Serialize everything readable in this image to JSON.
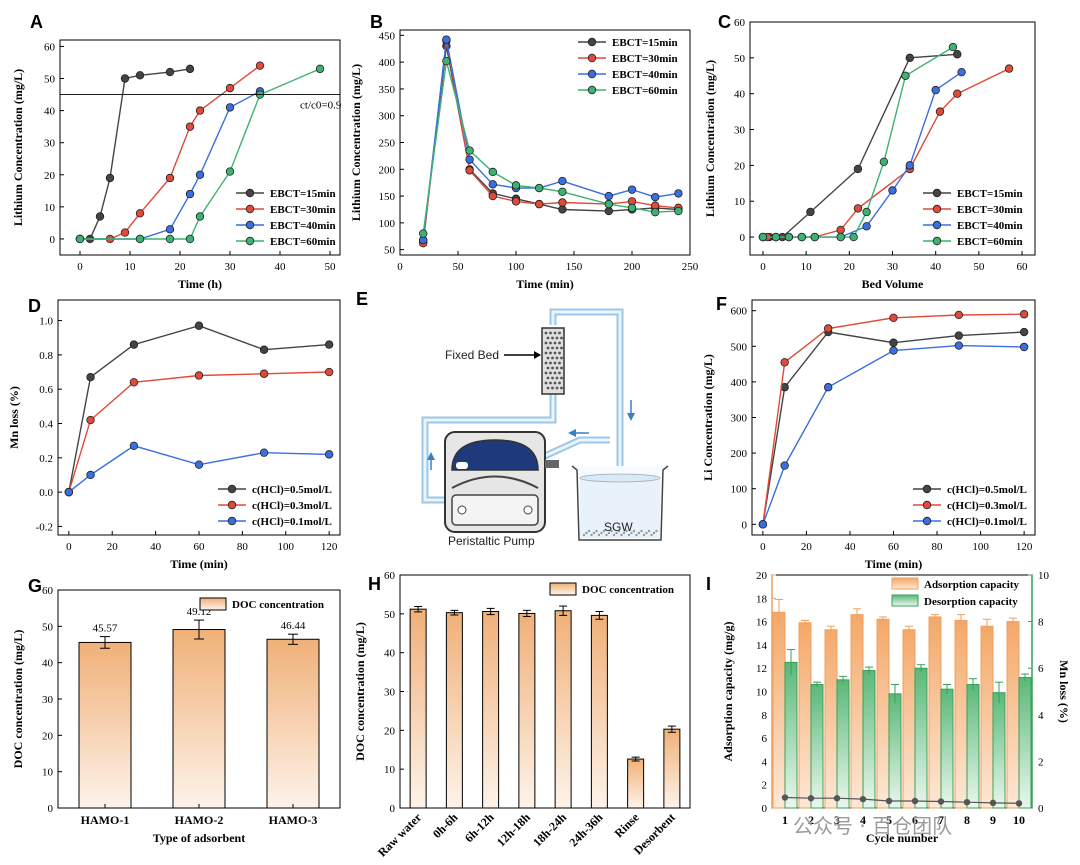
{
  "watermark": "公众号 · 百仓团队",
  "chart_data": [
    {
      "panel": "A",
      "type": "line",
      "xlabel": "Time (h)",
      "ylabel": "Lithium Concentration (mg/L)",
      "xlim": [
        -4,
        52
      ],
      "ylim": [
        -5,
        62
      ],
      "xticks": [
        0,
        10,
        20,
        30,
        40,
        50
      ],
      "yticks": [
        0,
        10,
        20,
        30,
        40,
        50,
        60
      ],
      "legend_position": "bottom-right",
      "annotation": {
        "label": "ct/c0=0.9",
        "y": 45
      },
      "series": [
        {
          "name": "EBCT=15min",
          "color": "#444444",
          "x": [
            0,
            2,
            4,
            6,
            9,
            12,
            18,
            22
          ],
          "y": [
            0,
            0,
            7,
            19,
            50,
            51,
            52,
            53
          ]
        },
        {
          "name": "EBCT=30min",
          "color": "#e04a3a",
          "x": [
            0,
            6,
            9,
            12,
            18,
            22,
            24,
            30,
            36
          ],
          "y": [
            0,
            0,
            2,
            8,
            19,
            35,
            40,
            47,
            54
          ]
        },
        {
          "name": "EBCT=40min",
          "color": "#3a6fe0",
          "x": [
            0,
            12,
            18,
            22,
            24,
            30,
            36
          ],
          "y": [
            0,
            0,
            3,
            14,
            20,
            41,
            46
          ]
        },
        {
          "name": "EBCT=60min",
          "color": "#3cb371",
          "x": [
            0,
            12,
            18,
            22,
            24,
            30,
            36,
            48
          ],
          "y": [
            0,
            0,
            0,
            0,
            7,
            21,
            45,
            53
          ]
        }
      ]
    },
    {
      "panel": "B",
      "type": "line",
      "xlabel": "Time (min)",
      "ylabel": "Lithium Concentration (mg/L)",
      "xlim": [
        0,
        250
      ],
      "ylim": [
        40,
        460
      ],
      "xticks": [
        0,
        50,
        100,
        150,
        200,
        250
      ],
      "yticks": [
        50,
        100,
        150,
        200,
        250,
        300,
        350,
        400,
        450
      ],
      "legend_position": "top-right",
      "series": [
        {
          "name": "EBCT=15min",
          "color": "#444444",
          "x": [
            20,
            40,
            60,
            80,
            100,
            120,
            140,
            180,
            200,
            220,
            240
          ],
          "y": [
            65,
            430,
            200,
            155,
            145,
            135,
            125,
            122,
            125,
            128,
            125
          ]
        },
        {
          "name": "EBCT=30min",
          "color": "#e04a3a",
          "x": [
            20,
            40,
            60,
            80,
            100,
            120,
            140,
            180,
            200,
            220,
            240
          ],
          "y": [
            62,
            440,
            198,
            150,
            140,
            135,
            138,
            135,
            140,
            132,
            128
          ]
        },
        {
          "name": "EBCT=40min",
          "color": "#3a6fe0",
          "x": [
            20,
            40,
            60,
            80,
            100,
            120,
            140,
            180,
            200,
            220,
            240
          ],
          "y": [
            68,
            442,
            218,
            172,
            165,
            165,
            178,
            150,
            162,
            148,
            155
          ]
        },
        {
          "name": "EBCT=60min",
          "color": "#3cb371",
          "x": [
            20,
            40,
            60,
            80,
            100,
            120,
            140,
            180,
            200,
            220,
            240
          ],
          "y": [
            80,
            402,
            235,
            195,
            170,
            165,
            158,
            135,
            128,
            120,
            122
          ]
        }
      ]
    },
    {
      "panel": "C",
      "type": "line",
      "xlabel": "Bed Volume",
      "ylabel": "Lithium Concentration (mg/L)",
      "xlim": [
        -3,
        63
      ],
      "ylim": [
        -5,
        60
      ],
      "xticks": [
        0,
        10,
        20,
        30,
        40,
        50,
        60
      ],
      "yticks": [
        0,
        10,
        20,
        30,
        40,
        50,
        60
      ],
      "legend_position": "bottom-right",
      "series": [
        {
          "name": "EBCT=15min",
          "color": "#444444",
          "x": [
            0,
            1.5,
            3,
            4.5,
            11,
            22,
            34,
            45
          ],
          "y": [
            0,
            0,
            0,
            0,
            7,
            19,
            50,
            51
          ]
        },
        {
          "name": "EBCT=30min",
          "color": "#e04a3a",
          "x": [
            0,
            1,
            3,
            6,
            9,
            12,
            18,
            22,
            34,
            41,
            45,
            57
          ],
          "y": [
            0,
            0,
            0,
            0,
            0,
            0,
            2,
            8,
            19,
            35,
            40,
            47
          ]
        },
        {
          "name": "EBCT=40min",
          "color": "#3a6fe0",
          "x": [
            0,
            3,
            6,
            9,
            12,
            18,
            24,
            30,
            34,
            40,
            46
          ],
          "y": [
            0,
            0,
            0,
            0,
            0,
            0,
            3,
            13,
            20,
            41,
            46
          ]
        },
        {
          "name": "EBCT=60min",
          "color": "#3cb371",
          "x": [
            0,
            3,
            6,
            9,
            12,
            18,
            21,
            24,
            28,
            33,
            44
          ],
          "y": [
            0,
            0,
            0,
            0,
            0,
            0,
            0,
            7,
            21,
            45,
            53
          ]
        }
      ]
    },
    {
      "panel": "D",
      "type": "line",
      "xlabel": "Time (min)",
      "ylabel": "Mn loss (%)",
      "xlim": [
        -5,
        125
      ],
      "ylim": [
        -0.25,
        1.12
      ],
      "xticks": [
        0,
        20,
        40,
        60,
        80,
        100,
        120
      ],
      "yticks": [
        -0.2,
        0.0,
        0.2,
        0.4,
        0.6,
        0.8,
        1.0
      ],
      "legend_position": "bottom-right",
      "series": [
        {
          "name": "c(HCl)=0.5mol/L",
          "color": "#444444",
          "x": [
            0,
            10,
            30,
            60,
            90,
            120
          ],
          "y": [
            0,
            0.67,
            0.86,
            0.97,
            0.83,
            0.86
          ]
        },
        {
          "name": "c(HCl)=0.3mol/L",
          "color": "#e04a3a",
          "x": [
            0,
            10,
            30,
            60,
            90,
            120
          ],
          "y": [
            0,
            0.42,
            0.64,
            0.68,
            0.69,
            0.7
          ]
        },
        {
          "name": "c(HCl)=0.1mol/L",
          "color": "#3a6fe0",
          "x": [
            0,
            10,
            30,
            60,
            90,
            120
          ],
          "y": [
            0,
            0.1,
            0.27,
            0.16,
            0.23,
            0.22
          ]
        }
      ]
    },
    {
      "panel": "F",
      "type": "line",
      "xlabel": "Time (min)",
      "ylabel": "Li Concentration (mg/L)",
      "xlim": [
        -5,
        125
      ],
      "ylim": [
        -30,
        630
      ],
      "xticks": [
        0,
        20,
        40,
        60,
        80,
        100,
        120
      ],
      "yticks": [
        0,
        100,
        200,
        300,
        400,
        500,
        600
      ],
      "legend_position": "bottom-right",
      "series": [
        {
          "name": "c(HCl)=0.5mol/L",
          "color": "#444444",
          "x": [
            0,
            10,
            30,
            60,
            90,
            120
          ],
          "y": [
            0,
            385,
            540,
            510,
            530,
            540
          ]
        },
        {
          "name": "c(HCl)=0.3mol/L",
          "color": "#e04a3a",
          "x": [
            0,
            10,
            30,
            60,
            90,
            120
          ],
          "y": [
            0,
            455,
            550,
            580,
            588,
            590
          ]
        },
        {
          "name": "c(HCl)=0.1mol/L",
          "color": "#3a6fe0",
          "x": [
            0,
            10,
            30,
            60,
            90,
            120
          ],
          "y": [
            0,
            165,
            385,
            488,
            502,
            498
          ]
        }
      ]
    },
    {
      "panel": "G",
      "type": "bar",
      "xlabel": "Type of adsorbent",
      "ylabel": "DOC concentration (mg/L)",
      "ylim": [
        0,
        60
      ],
      "yticks": [
        0,
        10,
        20,
        30,
        40,
        50,
        60
      ],
      "legend": "DOC concentration",
      "legend_position": "top-right",
      "categories": [
        "HAMO-1",
        "HAMO-2",
        "HAMO-3"
      ],
      "values": [
        45.57,
        49.12,
        46.44
      ],
      "value_labels": [
        "45.57",
        "49.12",
        "46.44"
      ],
      "errors": [
        1.6,
        2.6,
        1.4
      ]
    },
    {
      "panel": "H",
      "type": "bar",
      "xlabel": "",
      "ylabel": "DOC concentration (mg/L)",
      "ylim": [
        0,
        60
      ],
      "yticks": [
        0,
        10,
        20,
        30,
        40,
        50,
        60
      ],
      "legend": "DOC concentration",
      "legend_position": "top-right",
      "categories": [
        "Raw water",
        "0h-6h",
        "6h-12h",
        "12h-18h",
        "18h-24h",
        "24h-36h",
        "Rinse",
        "Desorbent"
      ],
      "values": [
        51.2,
        50.3,
        50.6,
        50.1,
        50.8,
        49.6,
        12.6,
        20.3
      ],
      "errors": [
        0.7,
        0.6,
        0.8,
        0.8,
        1.2,
        1.0,
        0.5,
        0.8
      ]
    },
    {
      "panel": "I",
      "type": "bar",
      "xlabel": "Cycle number",
      "ylabel": "Adsorption capacity (mg/g)",
      "y2label": "Mn loss (%)",
      "ylim": [
        0,
        20
      ],
      "yticks": [
        0,
        2,
        4,
        6,
        8,
        10,
        12,
        14,
        16,
        18,
        20
      ],
      "y2lim": [
        0,
        10
      ],
      "y2ticks": [
        0,
        2,
        4,
        6,
        8,
        10
      ],
      "legend_position": "top-right",
      "categories": [
        "1",
        "2",
        "3",
        "4",
        "5",
        "6",
        "7",
        "8",
        "9",
        "10"
      ],
      "series": [
        {
          "name": "Adsorption capacity",
          "color": "#f0a060",
          "values": [
            16.8,
            15.9,
            15.3,
            16.6,
            16.2,
            15.3,
            16.4,
            16.1,
            15.6,
            16.0
          ],
          "errors": [
            1.1,
            0.2,
            0.3,
            0.5,
            0.2,
            0.3,
            0.2,
            0.5,
            0.6,
            0.3
          ]
        },
        {
          "name": "Desorption capacity",
          "color": "#3aa05a",
          "values": [
            12.5,
            10.6,
            11.0,
            11.8,
            9.8,
            12.0,
            10.2,
            10.6,
            9.9,
            11.2
          ],
          "errors": [
            1.1,
            0.2,
            0.3,
            0.3,
            0.8,
            0.3,
            0.4,
            0.5,
            0.9,
            0.3
          ]
        },
        {
          "name": "Mn loss",
          "color": "#555555",
          "axis": "y2",
          "values": [
            0.45,
            0.42,
            0.42,
            0.38,
            0.3,
            0.3,
            0.28,
            0.25,
            0.22,
            0.2
          ]
        }
      ]
    }
  ],
  "diagram_E": {
    "panel": "E",
    "labels": {
      "bed": "Fixed Bed",
      "pump": "Peristaltic Pump",
      "beaker": "SGW"
    }
  }
}
